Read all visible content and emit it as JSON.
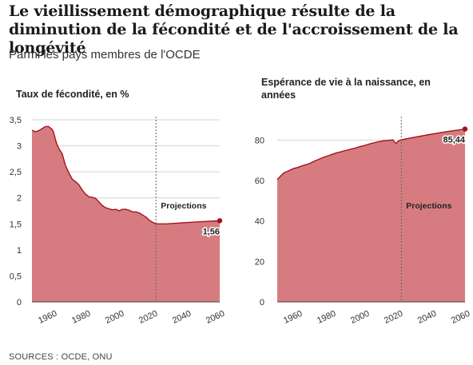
{
  "header": {
    "title": "Le vieillissement démographique résulte de la diminution de la fécondité et de l'accroissement de la longévité",
    "subtitle": "Parmi les pays membres de l'OCDE"
  },
  "footer": {
    "source": "SOURCES : OCDE, ONU"
  },
  "colors": {
    "fill": "#d67c80",
    "line": "#a3121c",
    "grid": "#d4d4d4",
    "axis": "#444444"
  },
  "chart_data": [
    {
      "type": "area",
      "title": "Taux de fécondité, en %",
      "xlim": [
        1950,
        2062
      ],
      "ylim": [
        0,
        3.5
      ],
      "xticks": [
        1960,
        1980,
        2000,
        2020,
        2040,
        2060
      ],
      "yticks": [
        0,
        0.5,
        1,
        1.5,
        2,
        2.5,
        3,
        3.5
      ],
      "ytick_labels": [
        "0",
        "0,5",
        "1",
        "1,5",
        "2",
        "2,5",
        "3",
        "3,5"
      ],
      "projection_start": 2024,
      "projection_label": "Projections",
      "end_label": "1,56",
      "end_point": [
        2062,
        1.56
      ],
      "x": [
        1950,
        1952,
        1954,
        1956,
        1958,
        1960,
        1961,
        1962,
        1963,
        1964,
        1965,
        1966,
        1967,
        1968,
        1970,
        1972,
        1974,
        1976,
        1978,
        1980,
        1982,
        1984,
        1986,
        1988,
        1990,
        1992,
        1994,
        1996,
        1998,
        2000,
        2002,
        2004,
        2006,
        2008,
        2010,
        2012,
        2014,
        2016,
        2018,
        2020,
        2022,
        2024,
        2030,
        2040,
        2050,
        2062
      ],
      "y": [
        3.3,
        3.27,
        3.29,
        3.33,
        3.37,
        3.37,
        3.34,
        3.32,
        3.25,
        3.12,
        3.02,
        2.95,
        2.9,
        2.85,
        2.62,
        2.48,
        2.36,
        2.31,
        2.25,
        2.15,
        2.07,
        2.02,
        2.01,
        1.99,
        1.92,
        1.85,
        1.81,
        1.79,
        1.77,
        1.78,
        1.75,
        1.78,
        1.78,
        1.76,
        1.73,
        1.73,
        1.71,
        1.67,
        1.63,
        1.57,
        1.53,
        1.5,
        1.5,
        1.52,
        1.54,
        1.56
      ]
    },
    {
      "type": "area",
      "title": "Espérance de vie à la naissance, en années",
      "xlim": [
        1950,
        2062
      ],
      "ylim": [
        0,
        90
      ],
      "xticks": [
        1960,
        1980,
        2000,
        2020,
        2040,
        2060
      ],
      "yticks": [
        0,
        20,
        40,
        60,
        80
      ],
      "ytick_labels": [
        "0",
        "20",
        "40",
        "60",
        "80"
      ],
      "projection_start": 2024,
      "projection_label": "Projections",
      "end_label": "85,44",
      "end_point": [
        2062,
        85.44
      ],
      "x": [
        1950,
        1952,
        1954,
        1956,
        1958,
        1960,
        1962,
        1964,
        1966,
        1968,
        1970,
        1972,
        1974,
        1976,
        1978,
        1980,
        1982,
        1984,
        1986,
        1988,
        1990,
        1992,
        1994,
        1996,
        1998,
        2000,
        2002,
        2004,
        2006,
        2008,
        2010,
        2012,
        2014,
        2016,
        2018,
        2019,
        2020,
        2021,
        2022,
        2024,
        2030,
        2040,
        2050,
        2062
      ],
      "y": [
        60.5,
        62.2,
        63.8,
        64.5,
        65.3,
        66.0,
        66.4,
        67.0,
        67.6,
        68.0,
        68.7,
        69.5,
        70.2,
        70.9,
        71.6,
        72.1,
        72.7,
        73.3,
        73.8,
        74.2,
        74.7,
        75.1,
        75.5,
        75.9,
        76.4,
        76.9,
        77.3,
        77.8,
        78.3,
        78.7,
        79.1,
        79.4,
        79.7,
        79.8,
        80.0,
        80.1,
        79.0,
        78.3,
        79.4,
        80.1,
        81.1,
        82.6,
        84.0,
        85.44
      ]
    }
  ]
}
